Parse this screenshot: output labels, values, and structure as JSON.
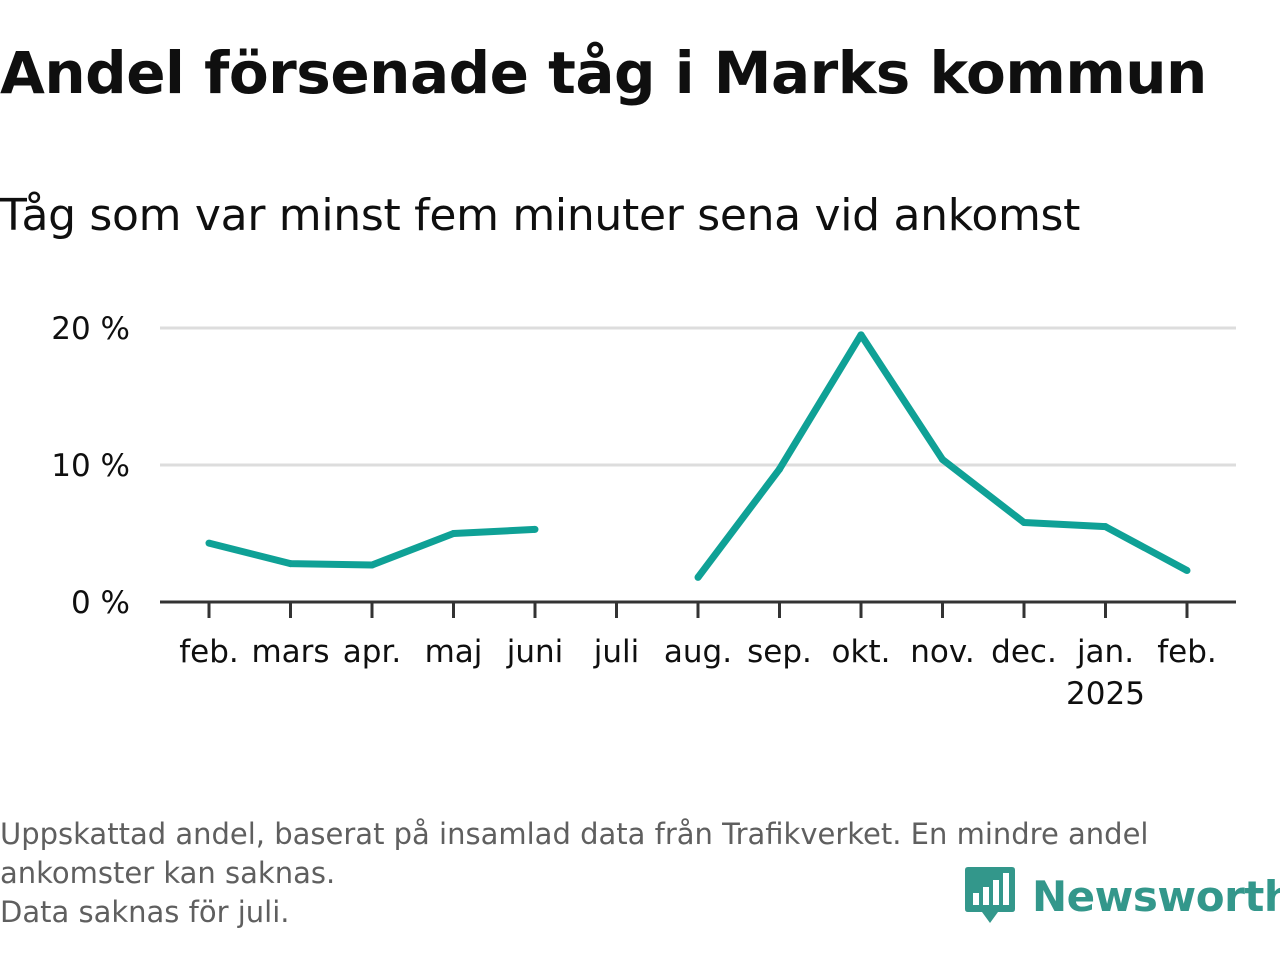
{
  "chart_data": {
    "type": "line",
    "title": "Andel försenade tåg i Marks kommun",
    "subtitle": "Tåg som var minst fem minuter sena vid ankomst",
    "categories": [
      "feb.",
      "mars",
      "apr.",
      "maj",
      "juni",
      "juli",
      "aug.",
      "sep.",
      "okt.",
      "nov.",
      "dec.",
      "jan.",
      "feb."
    ],
    "year_labels": [
      {
        "index": 11,
        "text": "2025"
      }
    ],
    "series": [
      {
        "values": [
          4.3,
          2.8,
          2.7,
          5.0,
          5.3,
          null,
          1.8,
          9.7,
          19.5,
          10.4,
          5.8,
          5.5,
          2.3
        ],
        "color": "#0fa196"
      }
    ],
    "yticks": [
      {
        "value": 0,
        "label": "0 %"
      },
      {
        "value": 10,
        "label": "10 %"
      },
      {
        "value": 20,
        "label": "20 %"
      }
    ],
    "ylim": [
      0,
      20
    ],
    "grid": true,
    "legend": "none",
    "colors": {
      "line": "#0fa196",
      "grid": "#dddddd",
      "axis": "#333333",
      "text": "#0f0f0f",
      "footnote": "#5f5f5f",
      "brand": "#33978b"
    }
  },
  "footnote": {
    "line1": "Uppskattad andel, baserat på insamlad data från Trafikverket. En mindre andel",
    "line2": "ankomster kan saknas.",
    "line3": "Data saknas för juli."
  },
  "brand": {
    "name": "Newsworthy",
    "icon": "newsworthy-logo-icon"
  }
}
